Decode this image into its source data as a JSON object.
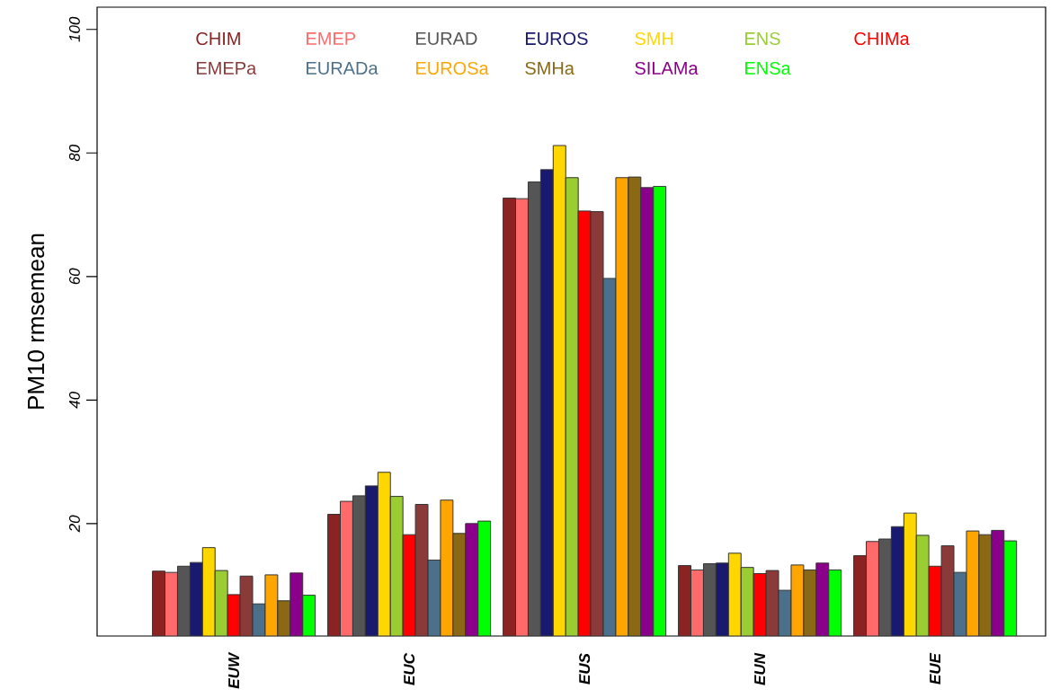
{
  "chart_data": {
    "type": "bar",
    "ylabel": "PM10 rmsemean",
    "categories": [
      "EUW",
      "EUC",
      "EUS",
      "EUN",
      "EUE"
    ],
    "series": [
      {
        "name": "CHIM",
        "color": "#8b2323",
        "values": [
          12.3,
          21.5,
          72.7,
          13.2,
          14.8
        ]
      },
      {
        "name": "EMEP",
        "color": "#ff6a6a",
        "values": [
          12.1,
          23.6,
          72.6,
          12.5,
          17.1
        ]
      },
      {
        "name": "EURAD",
        "color": "#555555",
        "values": [
          13.1,
          24.5,
          75.3,
          13.5,
          17.5
        ]
      },
      {
        "name": "EUROS",
        "color": "#191970",
        "values": [
          13.7,
          26.1,
          77.3,
          13.6,
          19.5
        ]
      },
      {
        "name": "SMH",
        "color": "#ffd700",
        "values": [
          16.1,
          28.3,
          81.2,
          15.2,
          21.7
        ]
      },
      {
        "name": "ENS",
        "color": "#9acd32",
        "values": [
          12.4,
          24.4,
          76.0,
          12.9,
          18.1
        ]
      },
      {
        "name": "CHIMa",
        "color": "#ff0000",
        "values": [
          8.5,
          18.2,
          70.6,
          11.9,
          13.1
        ]
      },
      {
        "name": "EMEPa",
        "color": "#8b3a3a",
        "values": [
          11.5,
          23.1,
          70.5,
          12.4,
          16.4
        ]
      },
      {
        "name": "EURADa",
        "color": "#4a708b",
        "values": [
          7.0,
          14.1,
          59.7,
          9.2,
          12.1
        ]
      },
      {
        "name": "EUROSa",
        "color": "#ffa500",
        "values": [
          11.7,
          23.8,
          76.0,
          13.3,
          18.8
        ]
      },
      {
        "name": "SMHa",
        "color": "#8b6914",
        "values": [
          7.5,
          18.4,
          76.1,
          12.5,
          18.2
        ]
      },
      {
        "name": "SILAMa",
        "color": "#8b008b",
        "values": [
          12.0,
          20.0,
          74.4,
          13.6,
          18.9
        ]
      },
      {
        "name": "ENSa",
        "color": "#00ff00",
        "values": [
          8.4,
          20.4,
          74.6,
          12.5,
          17.2
        ]
      }
    ],
    "ylim": [
      1.8,
      103.6
    ],
    "yticks": [
      20,
      40,
      60,
      80,
      100
    ],
    "legend": "top",
    "grid": false
  }
}
